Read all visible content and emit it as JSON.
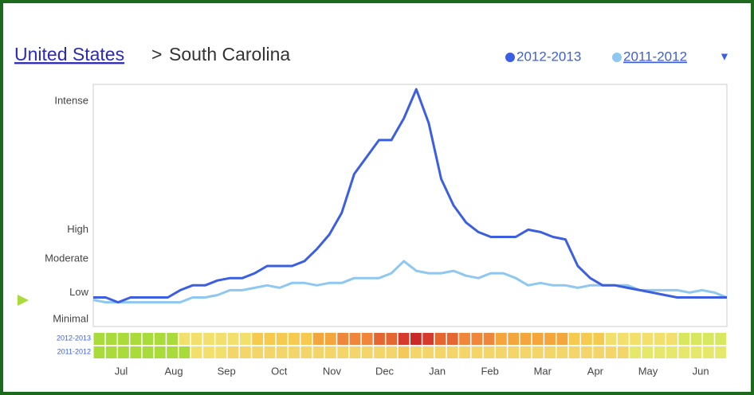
{
  "chart_data": {
    "type": "line",
    "title_link": "United States",
    "title_separator": ">",
    "title": "South Carolina",
    "legend_menu_icon": "▼",
    "series": [
      {
        "name": "2012-2013",
        "color": "#3b5fe0",
        "values": [
          12,
          12,
          10,
          12,
          12,
          12,
          12,
          15,
          17,
          17,
          19,
          20,
          20,
          22,
          25,
          25,
          25,
          27,
          32,
          38,
          47,
          63,
          70,
          77,
          77,
          86,
          98,
          84,
          61,
          50,
          43,
          39,
          37,
          37,
          37,
          40,
          39,
          37,
          36,
          25,
          20,
          17,
          17,
          16,
          15,
          14,
          13,
          12,
          12,
          12,
          12,
          12
        ],
        "heat_colors": [
          "#a9dc3a",
          "#a9dc3a",
          "#a9dc3a",
          "#a9dc3a",
          "#a9dc3a",
          "#a9dc3a",
          "#a9dc3a",
          "#f3e06c",
          "#f3e06c",
          "#f3e06c",
          "#f3e06c",
          "#f3e06c",
          "#f3e06c",
          "#f6c94f",
          "#f6c94f",
          "#f6c94f",
          "#f6c94f",
          "#f6c94f",
          "#f4a53b",
          "#f4a53b",
          "#ef863a",
          "#ef863a",
          "#ef863a",
          "#e6662f",
          "#e6662f",
          "#d63a2a",
          "#c92a26",
          "#d63a2a",
          "#e6662f",
          "#e6662f",
          "#ef863a",
          "#ef863a",
          "#ef863a",
          "#f4a53b",
          "#f4a53b",
          "#f4a53b",
          "#f4a53b",
          "#f4a53b",
          "#f4a53b",
          "#f6c94f",
          "#f6c94f",
          "#f6c94f",
          "#f3e06c",
          "#f3e06c",
          "#f3e06c",
          "#f3e06c",
          "#f3e06c",
          "#f3e06c",
          "#d8e85e",
          "#d8e85e",
          "#d8e85e",
          "#d8e85e"
        ]
      },
      {
        "name": "2011-2012",
        "color": "#8ec8f0",
        "values": [
          11,
          10,
          10,
          10,
          10,
          10,
          10,
          10,
          12,
          12,
          13,
          15,
          15,
          16,
          17,
          16,
          18,
          18,
          17,
          18,
          18,
          20,
          20,
          20,
          22,
          27,
          23,
          22,
          22,
          23,
          21,
          20,
          22,
          22,
          20,
          17,
          18,
          17,
          17,
          16,
          17,
          17,
          17,
          17,
          15,
          15,
          15,
          15,
          14,
          15,
          14,
          12
        ],
        "heat_colors": [
          "#a9dc3a",
          "#a9dc3a",
          "#a9dc3a",
          "#a9dc3a",
          "#a9dc3a",
          "#a9dc3a",
          "#a9dc3a",
          "#a9dc3a",
          "#f3e06c",
          "#f3e06c",
          "#f3e06c",
          "#f3d56a",
          "#f3d56a",
          "#f3d56a",
          "#f3d56a",
          "#f3d56a",
          "#f3d56a",
          "#f3d56a",
          "#f3d56a",
          "#f3d56a",
          "#f3d56a",
          "#f3d56a",
          "#f3d56a",
          "#f3d56a",
          "#f3d56a",
          "#f3c95a",
          "#f3d56a",
          "#f3d56a",
          "#f3d56a",
          "#f3d56a",
          "#f3d56a",
          "#f3d56a",
          "#f3d56a",
          "#f3d56a",
          "#f3d56a",
          "#f3d56a",
          "#f3d56a",
          "#f3d56a",
          "#f3d56a",
          "#f3d56a",
          "#f3d56a",
          "#f3d56a",
          "#f3d56a",
          "#f3d56a",
          "#e5e86a",
          "#e5e86a",
          "#e5e86a",
          "#e5e86a",
          "#e5e86a",
          "#e5e86a",
          "#e5e86a",
          "#e5e86a"
        ]
      }
    ],
    "months": [
      "Jul",
      "Aug",
      "Sep",
      "Oct",
      "Nov",
      "Dec",
      "Jan",
      "Feb",
      "Mar",
      "Apr",
      "May",
      "Jun"
    ],
    "ylim": [
      0,
      100
    ],
    "yticks": [
      {
        "value": 3,
        "label": "Minimal"
      },
      {
        "value": 14,
        "label": "Low"
      },
      {
        "value": 28,
        "label": "Moderate"
      },
      {
        "value": 40,
        "label": "High"
      },
      {
        "value": 93,
        "label": "Intense"
      }
    ]
  }
}
